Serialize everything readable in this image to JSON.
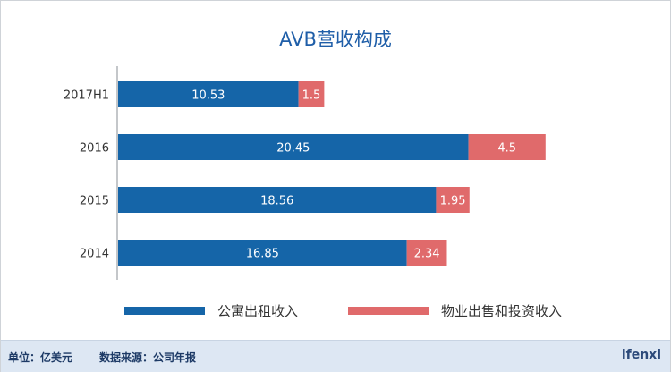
{
  "chart_data": {
    "type": "bar",
    "orientation": "horizontal",
    "stacked": true,
    "title": "AVB营收构成",
    "categories": [
      "2017H1",
      "2016",
      "2015",
      "2014"
    ],
    "series": [
      {
        "name": "公寓出租收入",
        "color": "#1565a8",
        "values": [
          10.53,
          20.45,
          18.56,
          16.85
        ],
        "labels": [
          "10.53",
          "20.45",
          "18.56",
          "16.85"
        ]
      },
      {
        "name": "物业出售和投资收入",
        "color": "#e06a6b",
        "values": [
          1.5,
          4.5,
          1.95,
          2.34
        ],
        "labels": [
          "1.5",
          "4.5",
          "1.95",
          "2.34"
        ]
      }
    ],
    "xlim": [
      0,
      28
    ],
    "grid": false,
    "legend_position": "bottom"
  },
  "footer": {
    "unit": "单位：亿美元",
    "source": "数据来源：公司年报",
    "brand": "ifenxi"
  }
}
